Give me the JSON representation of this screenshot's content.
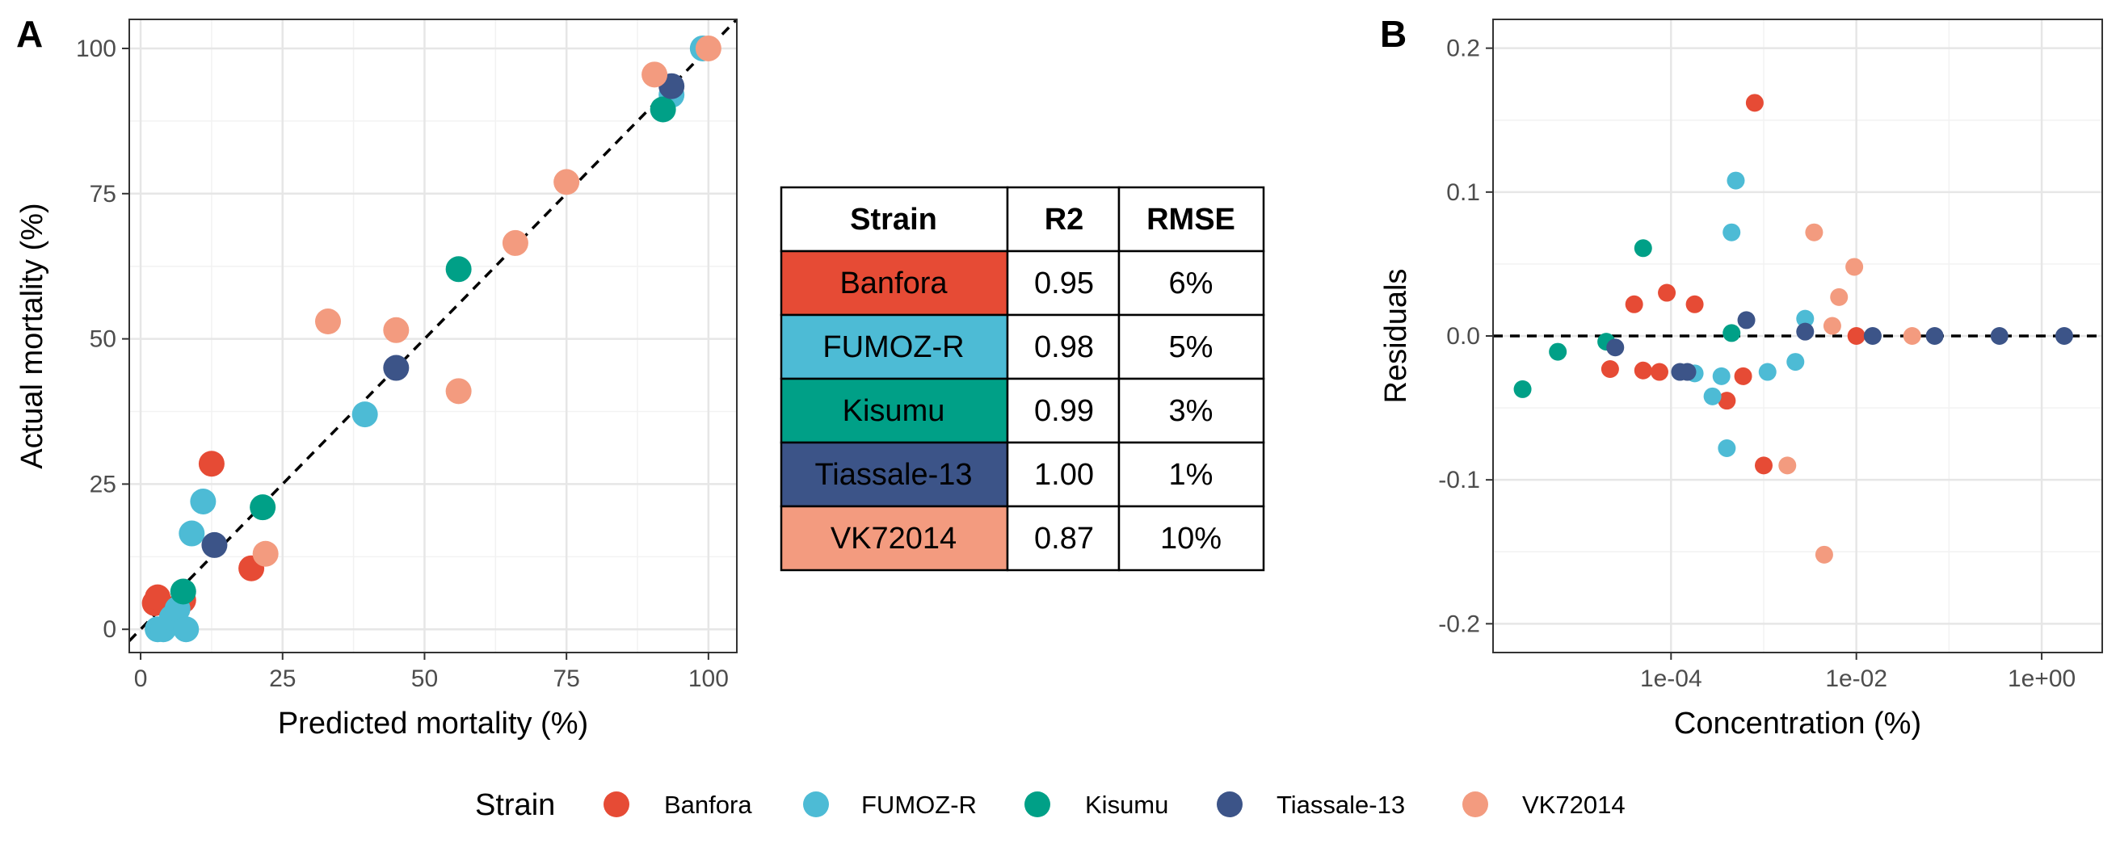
{
  "panel_a_tag": "A",
  "panel_b_tag": "B",
  "legend": {
    "title": "Strain",
    "items": [
      "Banfora",
      "FUMOZ-R",
      "Kisumu",
      "Tiassale-13",
      "VK72014"
    ]
  },
  "colors": {
    "Banfora": "#e64b35",
    "FUMOZ-R": "#4dbbd5",
    "Kisumu": "#00a087",
    "Tiassale-13": "#3c5488",
    "VK72014": "#f39b7f"
  },
  "table": {
    "headers": [
      "Strain",
      "R2",
      "RMSE"
    ],
    "rows": [
      {
        "strain": "Banfora",
        "r2": "0.95",
        "rmse": "6%"
      },
      {
        "strain": "FUMOZ-R",
        "r2": "0.98",
        "rmse": "5%"
      },
      {
        "strain": "Kisumu",
        "r2": "0.99",
        "rmse": "3%"
      },
      {
        "strain": "Tiassale-13",
        "r2": "1.00",
        "rmse": "1%"
      },
      {
        "strain": "VK72014",
        "r2": "0.87",
        "rmse": "10%"
      }
    ]
  },
  "chart_data": [
    {
      "type": "scatter",
      "panel": "A",
      "xlabel": "Predicted mortality (%)",
      "ylabel": "Actual mortality (%)",
      "xlim": [
        -2,
        105
      ],
      "ylim": [
        -4,
        105
      ],
      "xticks": [
        0,
        25,
        50,
        75,
        100
      ],
      "yticks": [
        0,
        25,
        50,
        75,
        100
      ],
      "xtick_labels": [
        "0",
        "25",
        "50",
        "75",
        "100"
      ],
      "ytick_labels": [
        "0",
        "25",
        "50",
        "75",
        "100"
      ],
      "grid": true,
      "reference_line": "y = x (dashed)",
      "series": [
        {
          "name": "Banfora",
          "points": [
            [
              2.5,
              4.5
            ],
            [
              3,
              5.5
            ],
            [
              7.5,
              5
            ],
            [
              12.5,
              28.5
            ],
            [
              19.5,
              10.5
            ]
          ]
        },
        {
          "name": "FUMOZ-R",
          "points": [
            [
              3,
              0
            ],
            [
              4,
              0
            ],
            [
              5.5,
              2
            ],
            [
              6.5,
              3.5
            ],
            [
              8,
              0
            ],
            [
              9,
              16.5
            ],
            [
              11,
              22
            ],
            [
              39.5,
              37
            ],
            [
              93.5,
              92
            ],
            [
              99,
              100
            ]
          ]
        },
        {
          "name": "Kisumu",
          "points": [
            [
              7.5,
              6.5
            ],
            [
              21.5,
              21
            ],
            [
              56,
              62
            ],
            [
              92,
              89.5
            ]
          ]
        },
        {
          "name": "Tiassale-13",
          "points": [
            [
              13,
              14.5
            ],
            [
              45,
              45
            ],
            [
              93.5,
              93.5
            ]
          ]
        },
        {
          "name": "VK72014",
          "points": [
            [
              22,
              13
            ],
            [
              33,
              53
            ],
            [
              45,
              51.5
            ],
            [
              56,
              41
            ],
            [
              66,
              66.5
            ],
            [
              75,
              77
            ],
            [
              90.5,
              95.5
            ],
            [
              100,
              100
            ]
          ]
        }
      ]
    },
    {
      "type": "scatter",
      "panel": "B",
      "xlabel": "Concentration (%)",
      "ylabel": "Residuals",
      "xscale": "log10",
      "xlim": [
        1.2e-06,
        4.5
      ],
      "ylim": [
        -0.22,
        0.22
      ],
      "xticks": [
        0.0001,
        0.01,
        1
      ],
      "xtick_labels": [
        "1e-04",
        "1e-02",
        "1e+00"
      ],
      "yticks": [
        -0.2,
        -0.1,
        0,
        0.1,
        0.2
      ],
      "ytick_labels": [
        "-0.2",
        "-0.1",
        "0.0",
        "0.1",
        "0.2"
      ],
      "grid": true,
      "reference_line": "y = 0 (dashed)",
      "series": [
        {
          "name": "Banfora",
          "points": [
            [
              2.2e-05,
              -0.023
            ],
            [
              4e-05,
              0.022
            ],
            [
              5e-05,
              -0.024
            ],
            [
              7.5e-05,
              -0.025
            ],
            [
              9e-05,
              0.03
            ],
            [
              0.00018,
              0.022
            ],
            [
              0.0004,
              -0.045
            ],
            [
              0.0006,
              -0.028
            ],
            [
              0.0008,
              0.162
            ],
            [
              0.001,
              -0.09
            ],
            [
              0.01,
              0
            ]
          ]
        },
        {
          "name": "FUMOZ-R",
          "points": [
            [
              0.00018,
              -0.026
            ],
            [
              0.00028,
              -0.042
            ],
            [
              0.00035,
              -0.028
            ],
            [
              0.0004,
              -0.078
            ],
            [
              0.00045,
              0.072
            ],
            [
              0.0005,
              0.108
            ],
            [
              0.0011,
              -0.025
            ],
            [
              0.0022,
              -0.018
            ],
            [
              0.0028,
              0.012
            ]
          ]
        },
        {
          "name": "Kisumu",
          "points": [
            [
              2.5e-06,
              -0.037
            ],
            [
              6e-06,
              -0.011
            ],
            [
              2e-05,
              -0.004
            ],
            [
              5e-05,
              0.061
            ],
            [
              0.00045,
              0.002
            ]
          ]
        },
        {
          "name": "Tiassale-13",
          "points": [
            [
              2.5e-05,
              -0.008
            ],
            [
              0.000125,
              -0.025
            ],
            [
              0.00015,
              -0.025
            ],
            [
              0.00065,
              0.011
            ],
            [
              0.0028,
              0.003
            ],
            [
              0.015,
              0
            ],
            [
              0.07,
              0
            ],
            [
              0.35,
              0
            ],
            [
              1.75,
              0
            ]
          ]
        },
        {
          "name": "VK72014",
          "points": [
            [
              0.0018,
              -0.09
            ],
            [
              0.0035,
              0.072
            ],
            [
              0.0045,
              -0.152
            ],
            [
              0.0055,
              0.007
            ],
            [
              0.0065,
              0.027
            ],
            [
              0.0095,
              0.048
            ],
            [
              0.04,
              0
            ]
          ]
        }
      ]
    }
  ]
}
